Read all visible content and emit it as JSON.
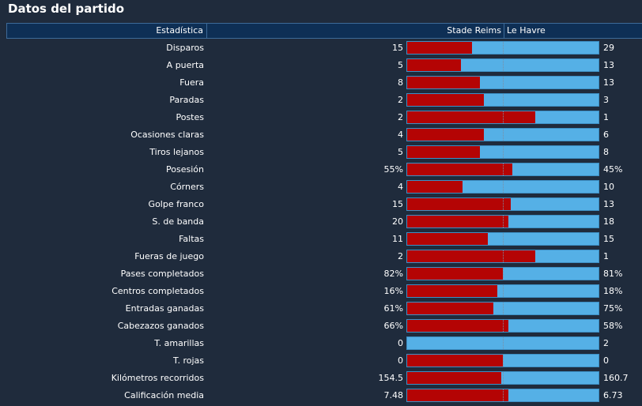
{
  "title": "Datos del partido",
  "columns": {
    "stat": "Estadística",
    "home": "Stade Reims",
    "away": "Le Havre"
  },
  "colors": {
    "home": "#b40404",
    "away": "#55b0e6",
    "background": "#1f2b3c",
    "header": "#0e2f55"
  },
  "stats": [
    {
      "label": "Disparos",
      "home": "15",
      "away": "29",
      "home_share": 0.34
    },
    {
      "label": "A puerta",
      "home": "5",
      "away": "13",
      "home_share": 0.28
    },
    {
      "label": "Fuera",
      "home": "8",
      "away": "13",
      "home_share": 0.38
    },
    {
      "label": "Paradas",
      "home": "2",
      "away": "3",
      "home_share": 0.4
    },
    {
      "label": "Postes",
      "home": "2",
      "away": "1",
      "home_share": 0.67
    },
    {
      "label": "Ocasiones claras",
      "home": "4",
      "away": "6",
      "home_share": 0.4
    },
    {
      "label": "Tiros lejanos",
      "home": "5",
      "away": "8",
      "home_share": 0.38
    },
    {
      "label": "Posesión",
      "home": "55%",
      "away": "45%",
      "home_share": 0.55
    },
    {
      "label": "Córners",
      "home": "4",
      "away": "10",
      "home_share": 0.29
    },
    {
      "label": "Golpe franco",
      "home": "15",
      "away": "13",
      "home_share": 0.54
    },
    {
      "label": "S. de banda",
      "home": "20",
      "away": "18",
      "home_share": 0.53
    },
    {
      "label": "Faltas",
      "home": "11",
      "away": "15",
      "home_share": 0.42
    },
    {
      "label": "Fueras de juego",
      "home": "2",
      "away": "1",
      "home_share": 0.67
    },
    {
      "label": "Pases completados",
      "home": "82%",
      "away": "81%",
      "home_share": 0.5
    },
    {
      "label": "Centros completados",
      "home": "16%",
      "away": "18%",
      "home_share": 0.47
    },
    {
      "label": "Entradas ganadas",
      "home": "61%",
      "away": "75%",
      "home_share": 0.45
    },
    {
      "label": "Cabezazos ganados",
      "home": "66%",
      "away": "58%",
      "home_share": 0.53
    },
    {
      "label": "T. amarillas",
      "home": "0",
      "away": "2",
      "home_share": 0.0
    },
    {
      "label": "T. rojas",
      "home": "0",
      "away": "0",
      "home_share": 0.5
    },
    {
      "label": "Kilómetros recorridos",
      "home": "154.5",
      "away": "160.7",
      "home_share": 0.49
    },
    {
      "label": "Calificación media",
      "home": "7.48",
      "away": "6.73",
      "home_share": 0.53
    }
  ]
}
